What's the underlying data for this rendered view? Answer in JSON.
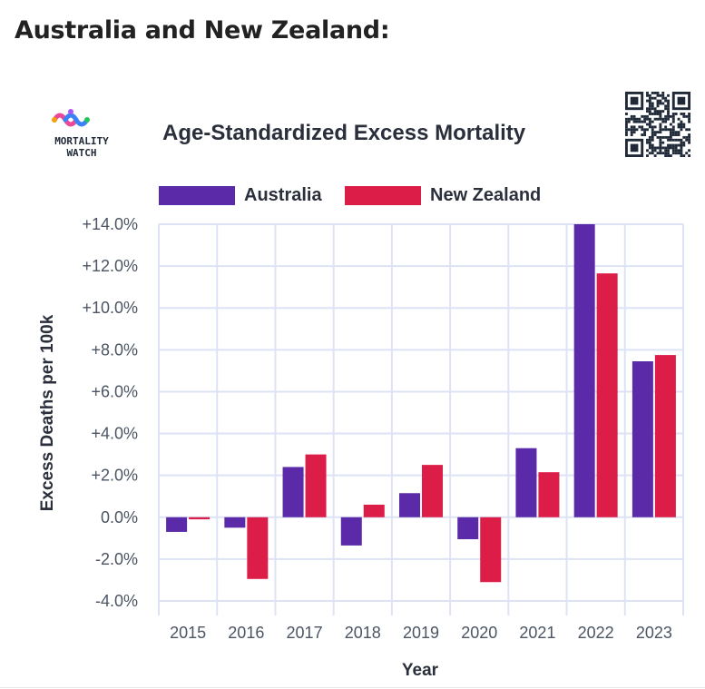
{
  "page": {
    "heading": "Australia and New Zealand:"
  },
  "logo": {
    "line1": "MORTALITY",
    "line2": "WATCH",
    "colors": [
      "#f59e0b",
      "#ec4899",
      "#3b82f6",
      "#22c55e",
      "#a855f7"
    ]
  },
  "qr_code": {
    "icon": "qr-code-icon"
  },
  "chart_data": {
    "type": "bar",
    "title": "Age-Standardized Excess Mortality",
    "xlabel": "Year",
    "ylabel": "Excess Deaths per 100k",
    "categories": [
      "2015",
      "2016",
      "2017",
      "2018",
      "2019",
      "2020",
      "2021",
      "2022",
      "2023"
    ],
    "series": [
      {
        "name": "Australia",
        "color": "#5b2aa8",
        "values": [
          -0.7,
          -0.5,
          2.4,
          -1.35,
          1.15,
          -1.05,
          3.3,
          14.0,
          7.45
        ]
      },
      {
        "name": "New Zealand",
        "color": "#dc1d48",
        "values": [
          -0.1,
          -2.95,
          3.0,
          0.6,
          2.5,
          -3.1,
          2.15,
          11.65,
          7.75
        ]
      }
    ],
    "ylim": [
      -4,
      14
    ],
    "yticks": [
      "+14.0%",
      "+12.0%",
      "+10.0%",
      "+8.0%",
      "+6.0%",
      "+4.0%",
      "+2.0%",
      "0.0%",
      "-2.0%",
      "-4.0%"
    ],
    "ytick_values": [
      14,
      12,
      10,
      8,
      6,
      4,
      2,
      0,
      -2,
      -4
    ],
    "grid": true,
    "legend_position": "top"
  }
}
